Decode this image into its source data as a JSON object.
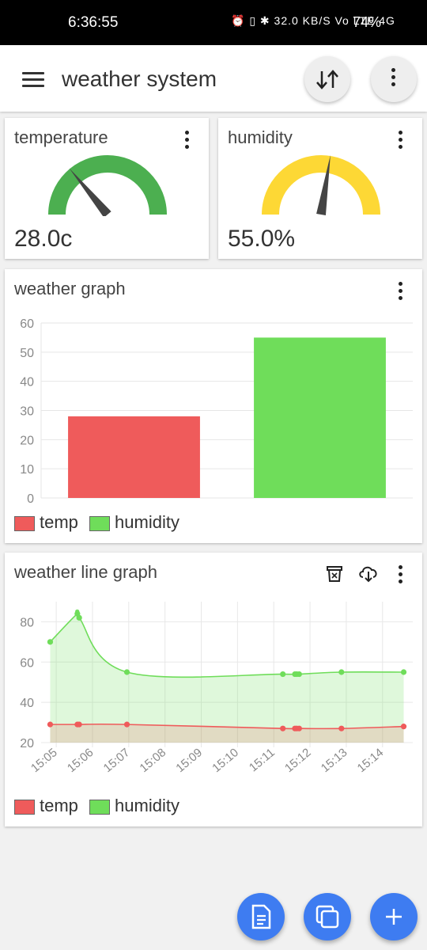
{
  "status_bar": {
    "time": "6:36:55",
    "icons": "⏰ ▯ ✱ 32.0 KB/S Vo LTE 4G",
    "battery": "74%"
  },
  "app_bar": {
    "title": "weather system",
    "sort_icon": "sort-arrows-icon",
    "more_icon": "more-vert-icon"
  },
  "temperature_card": {
    "title": "temperature",
    "value": "28.0c",
    "fraction": 0.28,
    "color": "#4caf50"
  },
  "humidity_card": {
    "title": "humidity",
    "value": "55.0%",
    "fraction": 0.55,
    "color": "#fdd835"
  },
  "bar_card": {
    "title": "weather graph"
  },
  "line_card": {
    "title": "weather line graph",
    "icons": [
      "trash-icon",
      "cloud-download-icon",
      "more-vert-icon"
    ]
  },
  "chart_data": [
    {
      "type": "bar",
      "categories": [
        "temp",
        "humidity"
      ],
      "values": [
        28,
        55
      ],
      "colors": [
        "#ef5b5b",
        "#6fdd5a"
      ],
      "ylim": [
        0,
        60
      ],
      "yticks": [
        0,
        10,
        20,
        30,
        40,
        50,
        60
      ],
      "legend": [
        "temp",
        "humidity"
      ],
      "legend_position": "bottom-left",
      "grid": true
    },
    {
      "type": "area",
      "x_ticks": [
        "15:05",
        "15:06",
        "15:07",
        "15:08",
        "15:09",
        "15:10",
        "15:11",
        "15:12",
        "15:13",
        "15:14"
      ],
      "ylim": [
        20,
        90
      ],
      "yticks": [
        20,
        40,
        60,
        80
      ],
      "series": [
        {
          "name": "humidity",
          "color": "#6fdd5a",
          "x": [
            "15:04:50",
            "15:05:35",
            "15:05:38",
            "15:06:57",
            "15:11:15",
            "15:11:35",
            "15:11:38",
            "15:11:42",
            "15:12:52",
            "15:14:35"
          ],
          "y": [
            70,
            84,
            82,
            55,
            54,
            54,
            54,
            54,
            55,
            55
          ]
        },
        {
          "name": "temp",
          "color": "#ef5b5b",
          "x": [
            "15:04:50",
            "15:05:35",
            "15:05:38",
            "15:06:57",
            "15:11:15",
            "15:11:35",
            "15:11:38",
            "15:11:42",
            "15:12:52",
            "15:14:35"
          ],
          "y": [
            29,
            29,
            29,
            29,
            27,
            27,
            27,
            27,
            27,
            28
          ]
        }
      ],
      "legend": [
        "temp",
        "humidity"
      ],
      "legend_position": "bottom-left",
      "grid": true
    }
  ],
  "fabs": [
    "document-icon",
    "copy-icon",
    "add-icon"
  ]
}
